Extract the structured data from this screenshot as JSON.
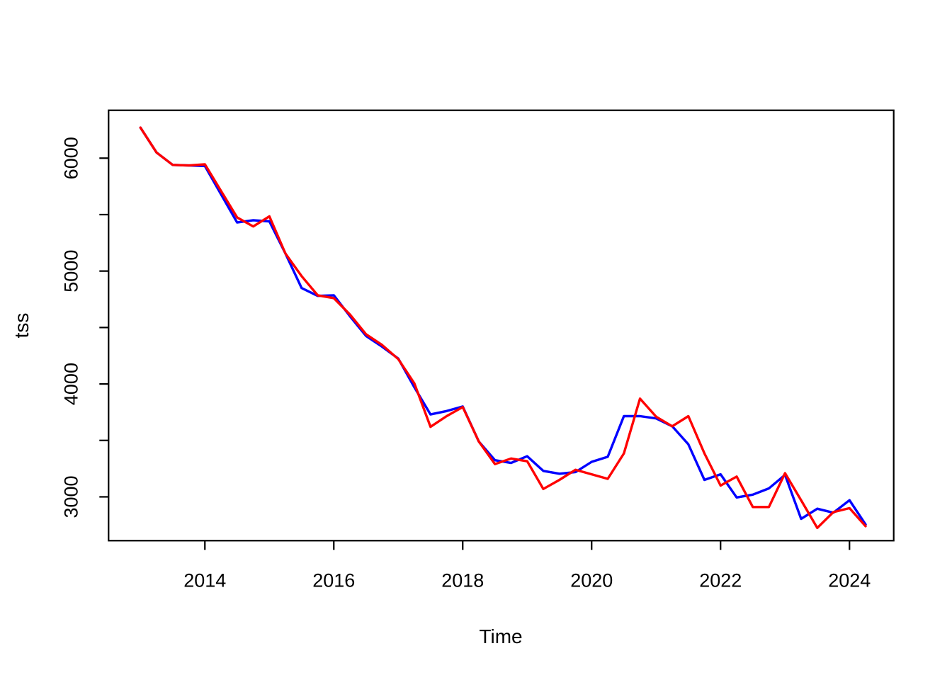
{
  "figure": {
    "background": "#ffffff",
    "frame_color": "#000000",
    "text_color": "#000000"
  },
  "chart_data": {
    "type": "line",
    "title": "",
    "xlabel": "Time",
    "ylabel": "tss",
    "grid": false,
    "legend": null,
    "xlim": [
      2012.506,
      2024.686
    ],
    "ylim": [
      2612,
      6424
    ],
    "x_ticks": [
      {
        "v": 2014,
        "label": "2014"
      },
      {
        "v": 2016,
        "label": "2016"
      },
      {
        "v": 2018,
        "label": "2018"
      },
      {
        "v": 2020,
        "label": "2020"
      },
      {
        "v": 2022,
        "label": "2022"
      },
      {
        "v": 2024,
        "label": "2024"
      }
    ],
    "y_ticks": [
      {
        "v": 3000,
        "label": "3000"
      },
      {
        "v": 3500,
        "label": ""
      },
      {
        "v": 4000,
        "label": "4000"
      },
      {
        "v": 4500,
        "label": ""
      },
      {
        "v": 5000,
        "label": "5000"
      },
      {
        "v": 5500,
        "label": ""
      },
      {
        "v": 6000,
        "label": "6000"
      }
    ],
    "x": [
      2013.0,
      2013.25,
      2013.5,
      2013.75,
      2014.0,
      2014.25,
      2014.5,
      2014.75,
      2015.0,
      2015.25,
      2015.5,
      2015.75,
      2016.0,
      2016.25,
      2016.5,
      2016.75,
      2017.0,
      2017.25,
      2017.5,
      2017.75,
      2018.0,
      2018.25,
      2018.5,
      2018.75,
      2019.0,
      2019.25,
      2019.5,
      2019.75,
      2020.0,
      2020.25,
      2020.5,
      2020.75,
      2021.0,
      2021.25,
      2021.5,
      2021.75,
      2022.0,
      2022.25,
      2022.5,
      2022.75,
      2023.0,
      2023.25,
      2023.5,
      2023.75,
      2024.0,
      2024.25
    ],
    "series": [
      {
        "name": "blue-line",
        "color": "#0000ff",
        "values": [
          6270,
          6050,
          5940,
          5935,
          5930,
          5680,
          5430,
          5450,
          5440,
          5155,
          4850,
          4780,
          4785,
          4600,
          4425,
          4330,
          4225,
          3970,
          3730,
          3760,
          3800,
          3490,
          3325,
          3300,
          3360,
          3230,
          3205,
          3220,
          3310,
          3355,
          3715,
          3715,
          3695,
          3625,
          3465,
          3150,
          3200,
          2995,
          3020,
          3075,
          3195,
          2805,
          2895,
          2860,
          2970,
          2755
        ]
      },
      {
        "name": "red-line",
        "color": "#ff0000",
        "values": [
          6270,
          6050,
          5940,
          5935,
          5945,
          5710,
          5475,
          5395,
          5485,
          5155,
          4955,
          4785,
          4760,
          4615,
          4440,
          4345,
          4220,
          4005,
          3620,
          3715,
          3795,
          3490,
          3290,
          3340,
          3315,
          3070,
          3150,
          3240,
          3200,
          3160,
          3385,
          3870,
          3710,
          3625,
          3715,
          3385,
          3100,
          3180,
          2910,
          2910,
          3210,
          2970,
          2725,
          2865,
          2900,
          2740
        ]
      }
    ]
  }
}
